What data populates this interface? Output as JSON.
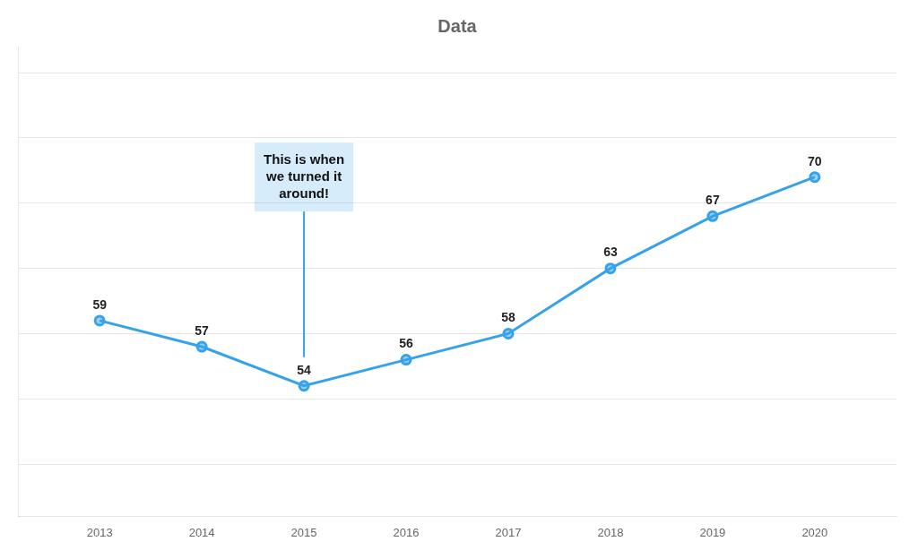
{
  "chart_data": {
    "type": "line",
    "title": "Data",
    "x": [
      2013,
      2014,
      2015,
      2016,
      2017,
      2018,
      2019,
      2020
    ],
    "values": [
      59,
      57,
      54,
      56,
      58,
      63,
      67,
      70
    ],
    "xlim": [
      2012.2,
      2020.8
    ],
    "xticks": [
      2013,
      2014,
      2015,
      2016,
      2017,
      2018,
      2019,
      2020
    ],
    "ylim": [
      44,
      80
    ],
    "yticks": [
      48,
      53,
      58,
      63,
      68,
      73,
      78
    ],
    "grid": true,
    "tick_labels": "x",
    "data_labels": true,
    "marker": "circle",
    "annotations": [
      {
        "text": "This is when\nwe turned it\naround!",
        "x": 2015,
        "y": 70
      }
    ]
  }
}
